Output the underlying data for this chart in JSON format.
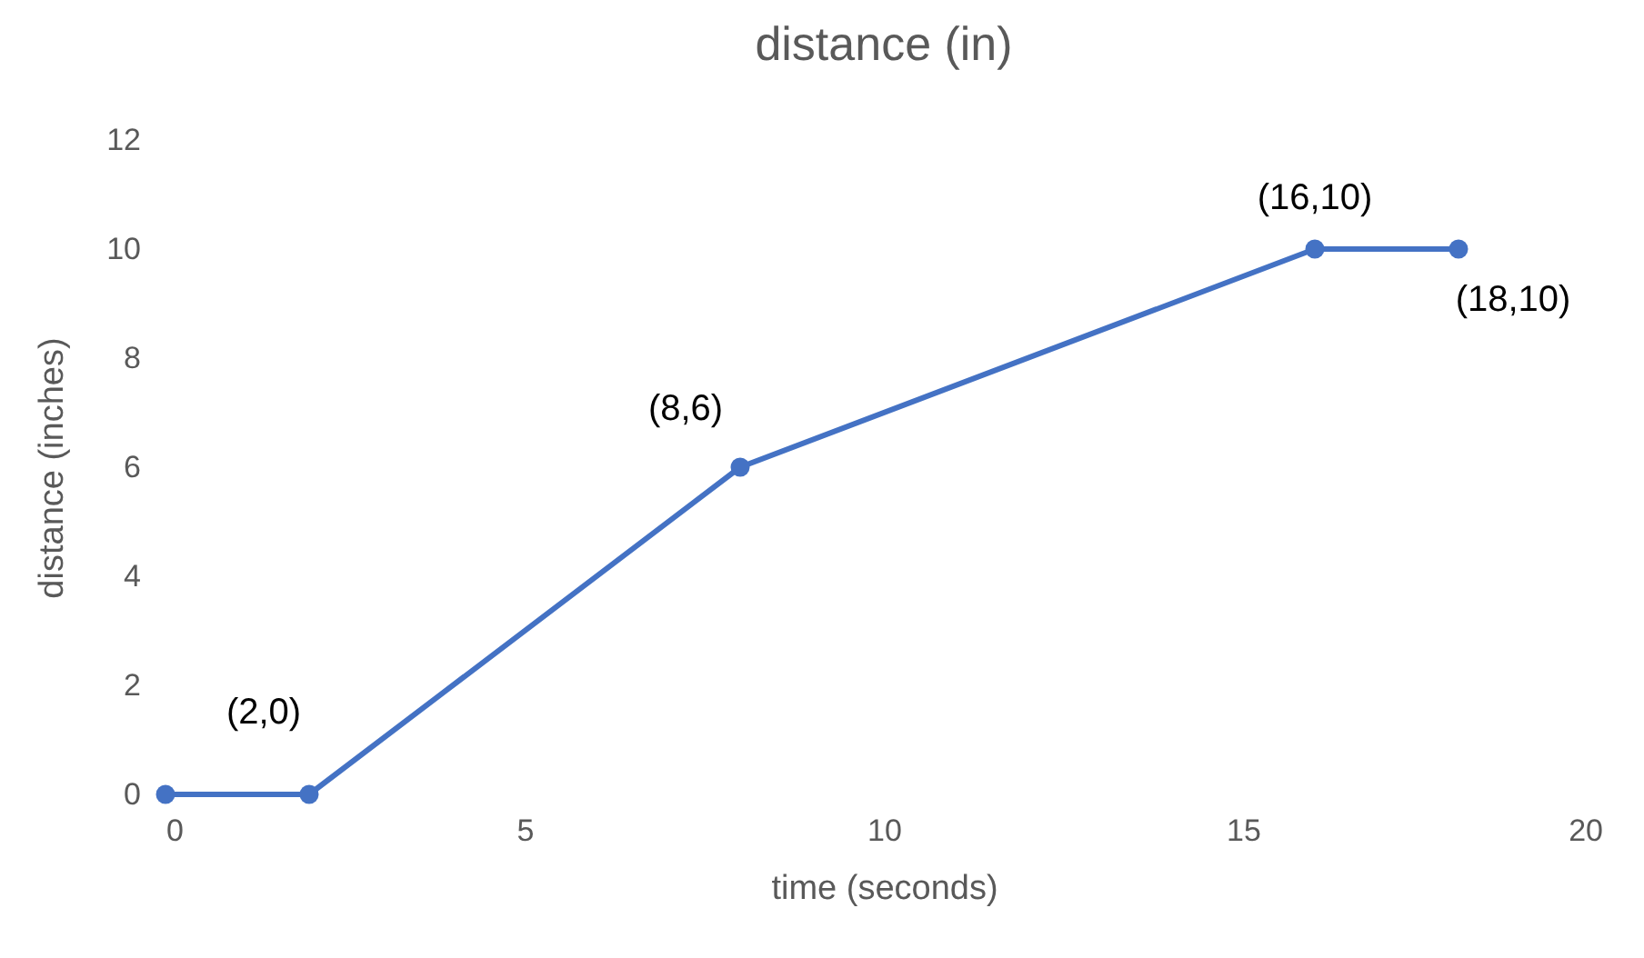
{
  "chart_data": {
    "type": "line",
    "title": "distance (in)",
    "xlabel": "time (seconds)",
    "ylabel": "distance (inches)",
    "x": [
      0,
      2,
      8,
      16,
      18
    ],
    "series": [
      {
        "color": "#4472c4",
        "values": [
          0,
          0,
          6,
          10,
          10
        ]
      }
    ],
    "xlim": [
      0,
      20
    ],
    "xticks": [
      0,
      5,
      10,
      15,
      20
    ],
    "ylim": [
      0,
      12
    ],
    "yticks": [
      0,
      2,
      4,
      6,
      8,
      10,
      12
    ],
    "marker": "circle",
    "line_style": "solid",
    "grid": false,
    "annotations": [
      {
        "text": "(2,0)",
        "x": 2,
        "y": 0
      },
      {
        "text": "(8,6)",
        "x": 8,
        "y": 6
      },
      {
        "text": "(16,10)",
        "x": 16,
        "y": 10
      },
      {
        "text": "(18,10)",
        "x": 18,
        "y": 10
      }
    ]
  }
}
